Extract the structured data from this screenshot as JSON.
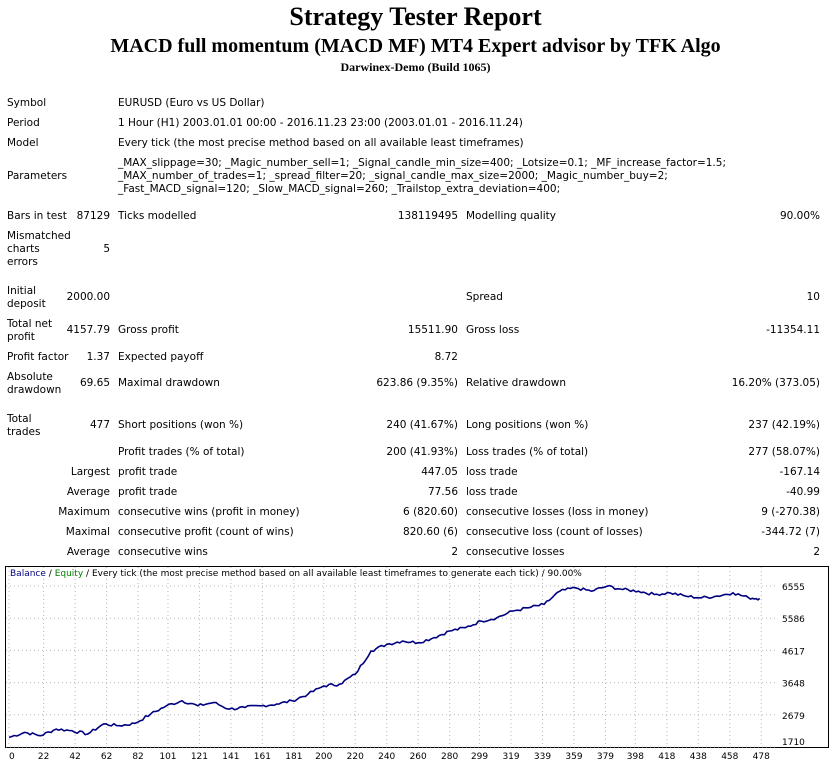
{
  "header": {
    "title": "Strategy Tester Report",
    "subtitle": "MACD full momentum (MACD MF) MT4 Expert advisor by TFK Algo",
    "server": "Darwinex-Demo (Build 1065)"
  },
  "info": {
    "symbol_label": "Symbol",
    "symbol_value": "EURUSD (Euro vs US Dollar)",
    "period_label": "Period",
    "period_value": "1 Hour (H1) 2003.01.01 00:00 - 2016.11.23 23:00 (2003.01.01 - 2016.11.24)",
    "model_label": "Model",
    "model_value": "Every tick (the most precise method based on all available least timeframes)",
    "parameters_label": "Parameters",
    "parameters_value": "_MAX_slippage=30; _Magic_number_sell=1; _Signal_candle_min_size=400; _Lotsize=0.1; _MF_increase_factor=1.5; _MAX_number_of_trades=1; _spread_filter=20; _signal_candle_max_size=2000; _Magic_number_buy=2; _Fast_MACD_signal=120; _Slow_MACD_signal=260; _Trailstop_extra_deviation=400;"
  },
  "stats": {
    "bars_label": "Bars in test",
    "bars_value": "87129",
    "ticks_label": "Ticks modelled",
    "ticks_value": "138119495",
    "quality_label": "Modelling quality",
    "quality_value": "90.00%",
    "mismatch_label": "Mismatched charts errors",
    "mismatch_value": "5",
    "deposit_label": "Initial deposit",
    "deposit_value": "2000.00",
    "spread_label": "Spread",
    "spread_value": "10",
    "netprofit_label": "Total net profit",
    "netprofit_value": "4157.79",
    "grossprofit_label": "Gross profit",
    "grossprofit_value": "15511.90",
    "grossloss_label": "Gross loss",
    "grossloss_value": "-11354.11",
    "pf_label": "Profit factor",
    "pf_value": "1.37",
    "payoff_label": "Expected payoff",
    "payoff_value": "8.72",
    "absdd_label": "Absolute drawdown",
    "absdd_value": "69.65",
    "maxdd_label": "Maximal drawdown",
    "maxdd_value": "623.86 (9.35%)",
    "reldd_label": "Relative drawdown",
    "reldd_value": "16.20% (373.05)",
    "trades_label": "Total trades",
    "trades_value": "477",
    "short_label": "Short positions (won %)",
    "short_value": "240 (41.67%)",
    "long_label": "Long positions (won %)",
    "long_value": "237 (42.19%)",
    "ptrades_label": "Profit trades (% of total)",
    "ptrades_value": "200 (41.93%)",
    "ltrades_label": "Loss trades (% of total)",
    "ltrades_value": "277 (58.07%)",
    "largest_label": "Largest",
    "lp_label": "profit trade",
    "lp_value": "447.05",
    "ll_label": "loss trade",
    "ll_value": "-167.14",
    "average_label": "Average",
    "ap_label": "profit trade",
    "ap_value": "77.56",
    "al_label": "loss trade",
    "al_value": "-40.99",
    "maximum_label": "Maximum",
    "mcw_label": "consecutive wins (profit in money)",
    "mcw_value": "6 (820.60)",
    "mcl_label": "consecutive losses (loss in money)",
    "mcl_value": "9 (-270.38)",
    "maximal_label": "Maximal",
    "mcp_label": "consecutive profit (count of wins)",
    "mcp_value": "820.60 (6)",
    "mclc_label": "consecutive loss (count of losses)",
    "mclc_value": "-344.72 (7)",
    "average2_label": "Average",
    "acw_label": "consecutive wins",
    "acw_value": "2",
    "acl_label": "consecutive losses",
    "acl_value": "2"
  },
  "chart_data": {
    "type": "line",
    "legend_balance": "Balance",
    "legend_sep": "/",
    "legend_equity": "Equity",
    "legend_rest": "/ Every tick (the most precise method based on all available least timeframes to generate each tick) / 90.00%",
    "balance_color": "#000080",
    "equity_color": "#008000",
    "x_ticks": [
      "0",
      "22",
      "42",
      "62",
      "82",
      "101",
      "121",
      "141",
      "161",
      "181",
      "200",
      "220",
      "240",
      "260",
      "280",
      "299",
      "319",
      "339",
      "359",
      "379",
      "398",
      "418",
      "438",
      "458",
      "478"
    ],
    "y_ticks": [
      "6555",
      "5586",
      "4617",
      "3648",
      "2679",
      "1710"
    ],
    "ylim": [
      1710,
      6555
    ],
    "xlim": [
      0,
      488
    ],
    "series": [
      {
        "name": "Balance",
        "x": [
          0,
          10,
          20,
          30,
          40,
          50,
          60,
          70,
          80,
          90,
          100,
          110,
          120,
          130,
          140,
          150,
          160,
          170,
          180,
          190,
          200,
          210,
          220,
          230,
          240,
          250,
          260,
          270,
          280,
          290,
          300,
          310,
          320,
          330,
          340,
          350,
          360,
          370,
          380,
          390,
          400,
          410,
          420,
          430,
          440,
          450,
          460,
          470,
          477
        ],
        "values": [
          2000,
          2150,
          2050,
          2250,
          2200,
          2100,
          2400,
          2350,
          2420,
          2700,
          2950,
          3100,
          2950,
          3050,
          2850,
          2900,
          2950,
          3000,
          3100,
          3300,
          3550,
          3600,
          3900,
          4600,
          4800,
          4900,
          4850,
          5000,
          5200,
          5300,
          5500,
          5600,
          5800,
          5900,
          6000,
          6400,
          6500,
          6400,
          6550,
          6450,
          6400,
          6300,
          6350,
          6250,
          6200,
          6250,
          6350,
          6200,
          6180
        ]
      }
    ]
  }
}
